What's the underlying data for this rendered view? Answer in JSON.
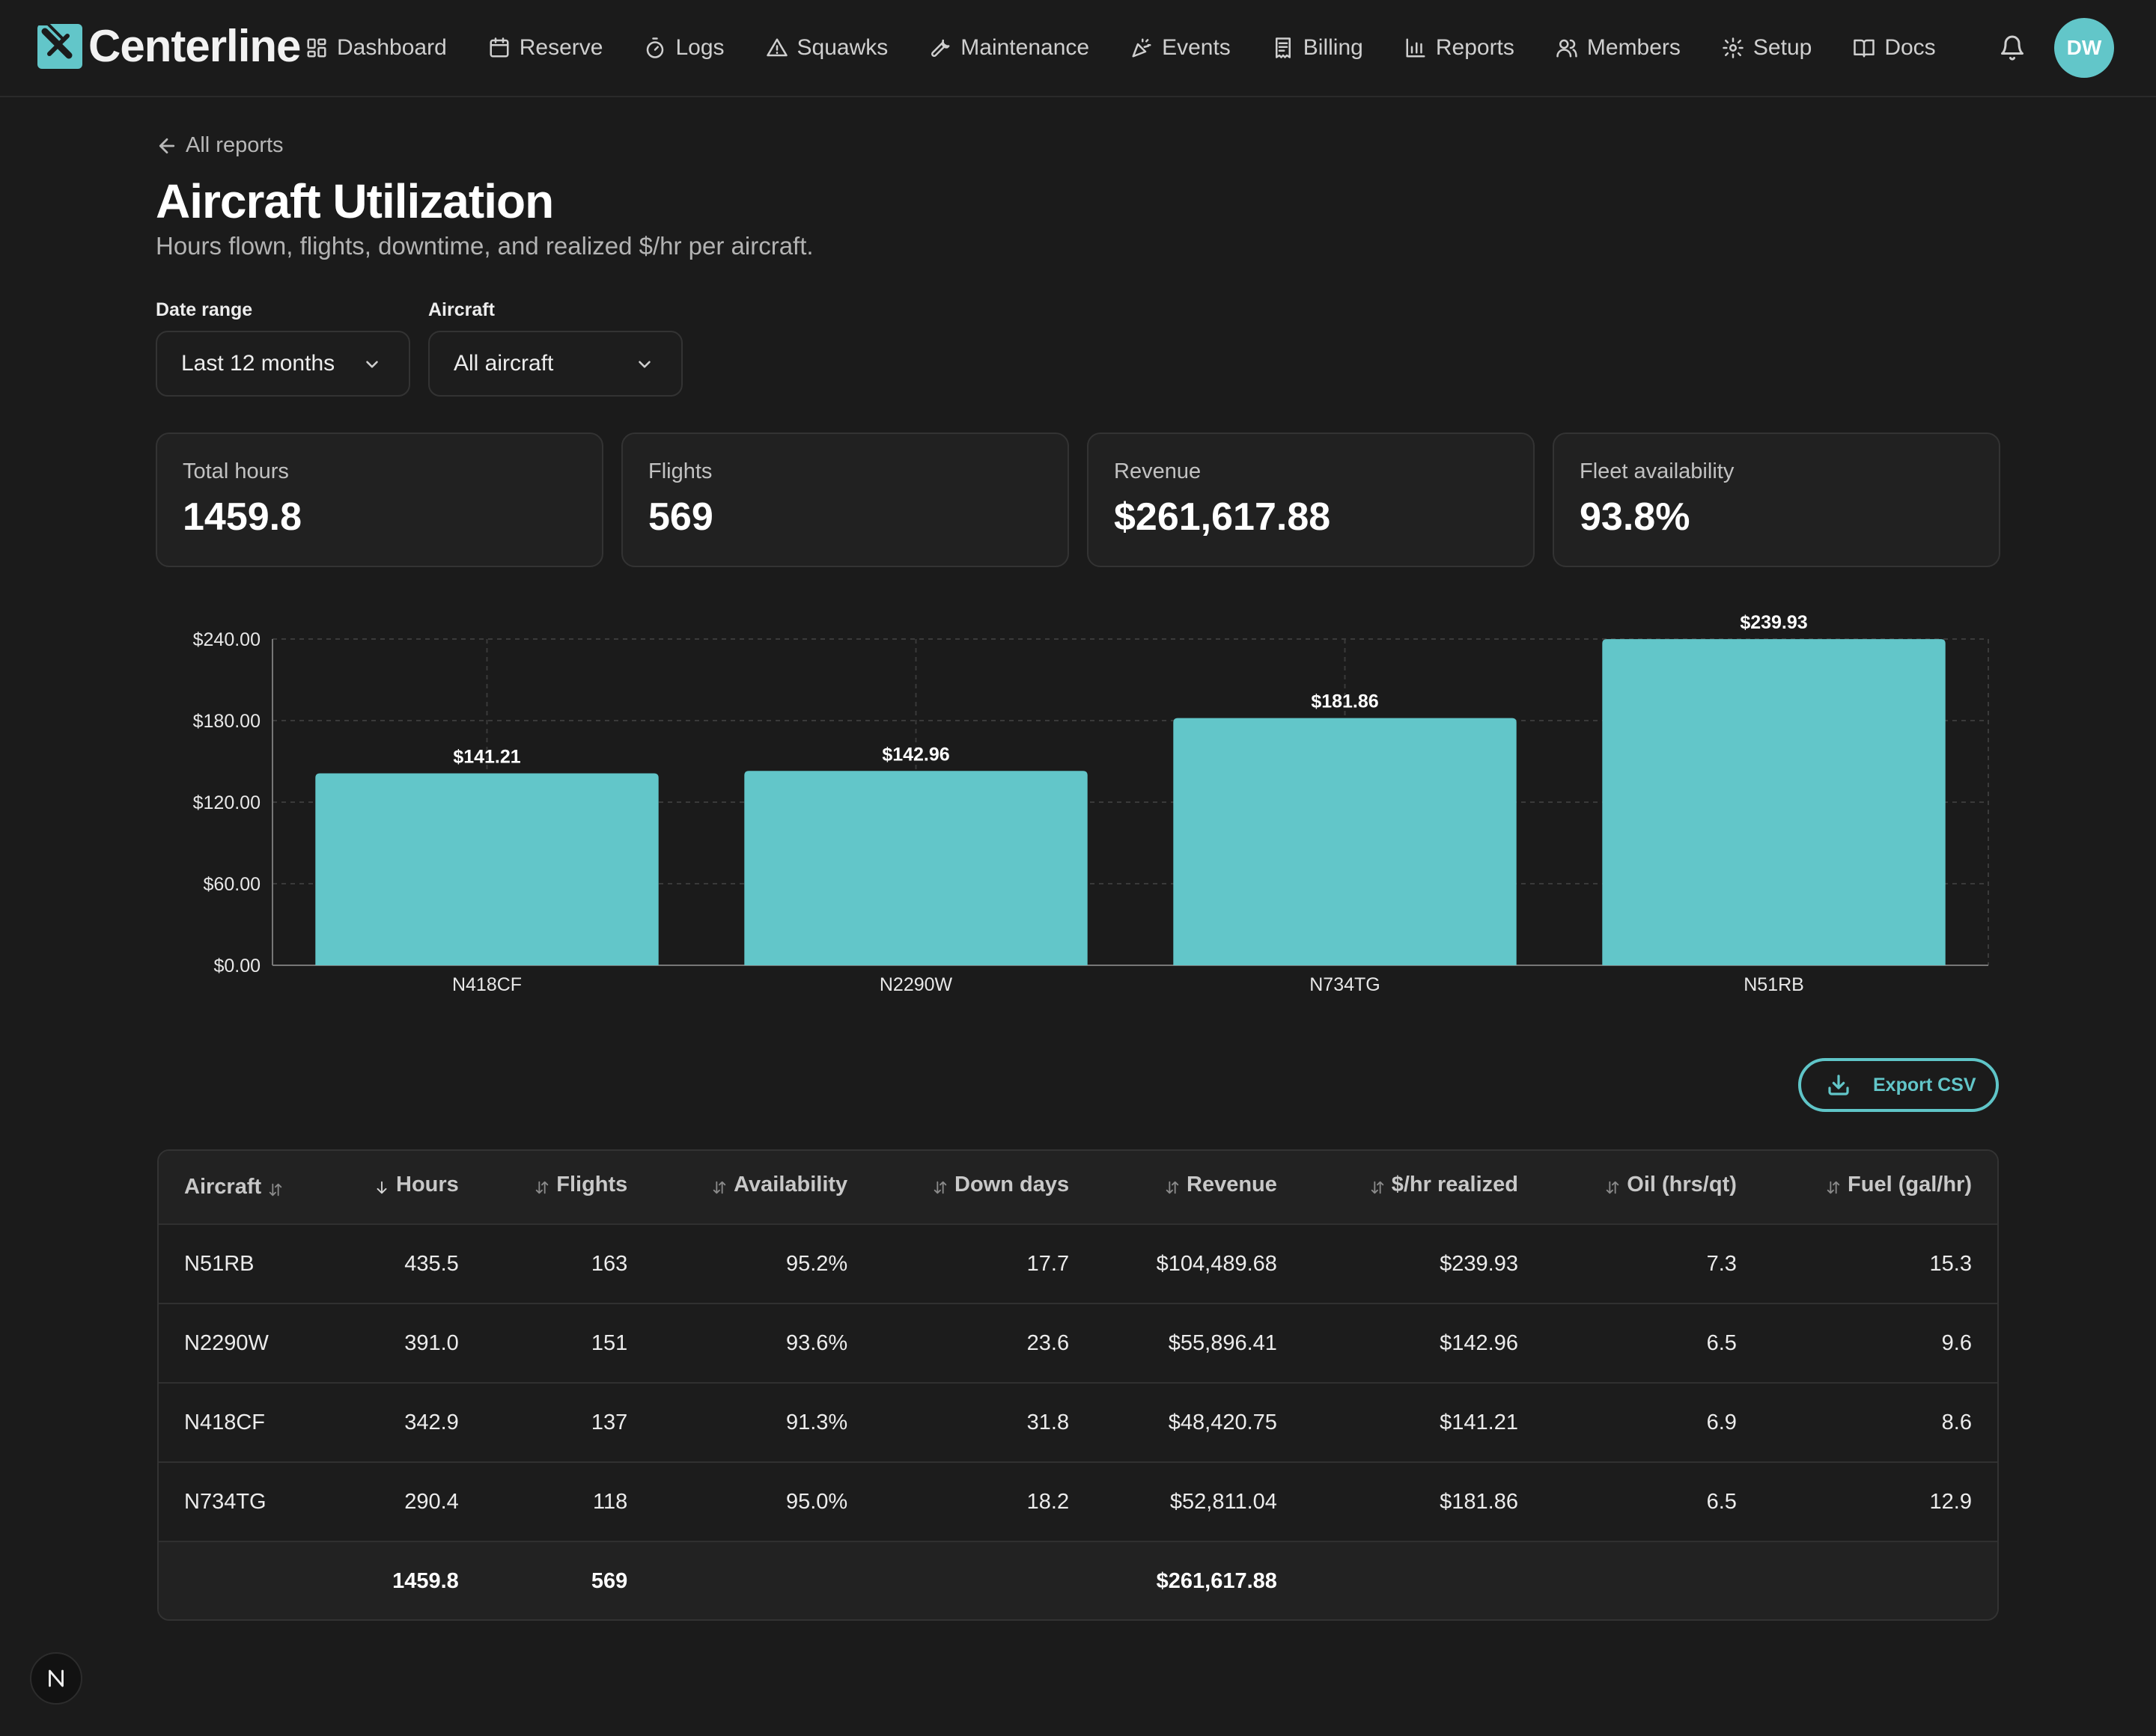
{
  "app": {
    "name": "Centerline",
    "user_initials": "DW"
  },
  "nav": {
    "items": [
      {
        "label": "Dashboard",
        "icon": "dashboard-icon"
      },
      {
        "label": "Reserve",
        "icon": "calendar-icon"
      },
      {
        "label": "Logs",
        "icon": "stopwatch-icon"
      },
      {
        "label": "Squawks",
        "icon": "warning-icon"
      },
      {
        "label": "Maintenance",
        "icon": "wrench-icon"
      },
      {
        "label": "Events",
        "icon": "party-icon"
      },
      {
        "label": "Billing",
        "icon": "receipt-icon"
      },
      {
        "label": "Reports",
        "icon": "bar-chart-icon"
      },
      {
        "label": "Members",
        "icon": "users-icon"
      },
      {
        "label": "Setup",
        "icon": "gear-icon"
      },
      {
        "label": "Docs",
        "icon": "book-icon"
      }
    ]
  },
  "header": {
    "back_label": "All reports",
    "title": "Aircraft Utilization",
    "subtitle": "Hours flown, flights, downtime, and realized $/hr per aircraft."
  },
  "filters": {
    "date_range": {
      "label": "Date range",
      "value": "Last 12 months"
    },
    "aircraft": {
      "label": "Aircraft",
      "value": "All aircraft"
    }
  },
  "stats": [
    {
      "label": "Total hours",
      "value": "1459.8"
    },
    {
      "label": "Flights",
      "value": "569"
    },
    {
      "label": "Revenue",
      "value": "$261,617.88"
    },
    {
      "label": "Fleet availability",
      "value": "93.8%"
    }
  ],
  "chart_data": {
    "type": "bar",
    "categories": [
      "N418CF",
      "N2290W",
      "N734TG",
      "N51RB"
    ],
    "values": [
      141.21,
      142.96,
      181.86,
      239.93
    ],
    "value_labels": [
      "$141.21",
      "$142.96",
      "$181.86",
      "$239.93"
    ],
    "ylim": [
      0,
      240
    ],
    "yticks": [
      0,
      60,
      120,
      180,
      240
    ],
    "ytick_labels": [
      "$0.00",
      "$60.00",
      "$120.00",
      "$180.00",
      "$240.00"
    ],
    "grid": true,
    "bar_color": "#62c6c9"
  },
  "export": {
    "label": "Export CSV"
  },
  "table": {
    "columns": [
      "Aircraft",
      "Hours",
      "Flights",
      "Availability",
      "Down days",
      "Revenue",
      "$/hr realized",
      "Oil (hrs/qt)",
      "Fuel (gal/hr)"
    ],
    "rows": [
      [
        "N51RB",
        "435.5",
        "163",
        "95.2%",
        "17.7",
        "$104,489.68",
        "$239.93",
        "7.3",
        "15.3"
      ],
      [
        "N2290W",
        "391.0",
        "151",
        "93.6%",
        "23.6",
        "$55,896.41",
        "$142.96",
        "6.5",
        "9.6"
      ],
      [
        "N418CF",
        "342.9",
        "137",
        "91.3%",
        "31.8",
        "$48,420.75",
        "$141.21",
        "6.9",
        "8.6"
      ],
      [
        "N734TG",
        "290.4",
        "118",
        "95.0%",
        "18.2",
        "$52,811.04",
        "$181.86",
        "6.5",
        "12.9"
      ]
    ],
    "totals": [
      "",
      "1459.8",
      "569",
      "",
      "",
      "$261,617.88",
      "",
      "",
      ""
    ]
  },
  "colors": {
    "accent": "#62c6c9",
    "background": "#1b1b1b"
  }
}
